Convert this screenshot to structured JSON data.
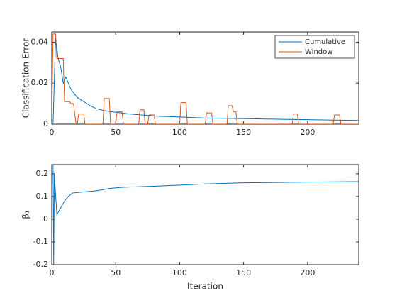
{
  "chart_data": [
    {
      "type": "line",
      "ylabel": "Classification Error",
      "xlim": [
        0,
        240
      ],
      "xticks": [
        0,
        50,
        100,
        150,
        200
      ],
      "ylim": [
        0,
        0.045
      ],
      "yticks": [
        0,
        0.02,
        0.04
      ],
      "legend": "upper right",
      "series": [
        {
          "name": "Cumulative",
          "color": "#0072bd",
          "x": [
            1,
            3,
            5,
            7,
            9,
            11,
            15,
            20,
            25,
            30,
            35,
            40,
            45,
            50,
            60,
            70,
            80,
            100,
            120,
            140,
            160,
            180,
            200,
            220,
            240
          ],
          "values": [
            0,
            0.042,
            0.032,
            0.028,
            0.02,
            0.023,
            0.017,
            0.013,
            0.011,
            0.009,
            0.0075,
            0.0068,
            0.0062,
            0.0058,
            0.005,
            0.0045,
            0.004,
            0.0035,
            0.003,
            0.0028,
            0.0026,
            0.0024,
            0.0022,
            0.002,
            0.0018
          ]
        },
        {
          "name": "Window",
          "color": "#d95319",
          "x": [
            0,
            1,
            3,
            4,
            5,
            9,
            10,
            14,
            15,
            17,
            19,
            20,
            21,
            25,
            26,
            40,
            41,
            45,
            46,
            50,
            51,
            55,
            56,
            68,
            69,
            72,
            73,
            75,
            76,
            80,
            81,
            100,
            101,
            105,
            106,
            120,
            121,
            125,
            126,
            137,
            138,
            141,
            142,
            144,
            145,
            188,
            189,
            192,
            193,
            220,
            221,
            225,
            226,
            240
          ],
          "values": [
            0,
            0.044,
            0.044,
            0.032,
            0.032,
            0.032,
            0.011,
            0.011,
            0.01,
            0.01,
            0,
            0,
            0.005,
            0.005,
            0,
            0,
            0.0125,
            0.0125,
            0,
            0,
            0.006,
            0.006,
            0,
            0,
            0.007,
            0.007,
            0,
            0,
            0.0045,
            0.0045,
            0,
            0,
            0.0105,
            0.0105,
            0,
            0,
            0.0055,
            0.0055,
            0,
            0,
            0.009,
            0.009,
            0.006,
            0.006,
            0,
            0,
            0.005,
            0.005,
            0,
            0,
            0.0045,
            0.0045,
            0,
            0
          ]
        }
      ]
    },
    {
      "type": "line",
      "ylabel": "β₁",
      "xlabel": "Iteration",
      "xlim": [
        0,
        240
      ],
      "xticks": [
        0,
        50,
        100,
        150,
        200
      ],
      "ylim": [
        -0.2,
        0.24
      ],
      "yticks": [
        -0.2,
        -0.1,
        0,
        0.1,
        0.2
      ],
      "series": [
        {
          "name": "β₁",
          "color": "#0072bd",
          "x": [
            1,
            1.5,
            2,
            4,
            7,
            10,
            13,
            16,
            25,
            35,
            45,
            55,
            80,
            100,
            120,
            150,
            200,
            240
          ],
          "values": [
            0.24,
            -0.2,
            0.2,
            0.02,
            0.05,
            0.08,
            0.1,
            0.115,
            0.12,
            0.125,
            0.135,
            0.14,
            0.145,
            0.15,
            0.155,
            0.16,
            0.163,
            0.165
          ]
        }
      ]
    }
  ]
}
